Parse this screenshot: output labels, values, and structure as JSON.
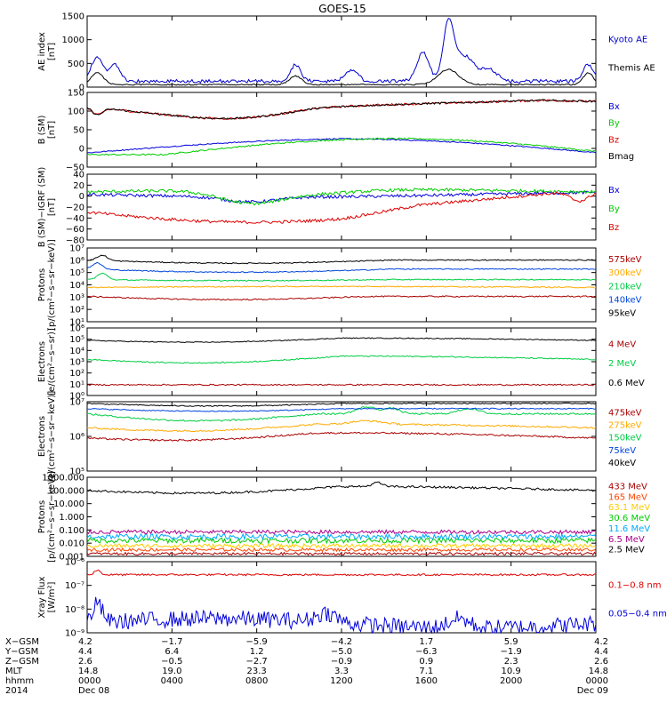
{
  "title": "GOES-15",
  "chart_data": {
    "type": "line",
    "x_ticks": [
      "0000",
      "0400",
      "0800",
      "1200",
      "1600",
      "2000",
      "0000"
    ],
    "panels": [
      {
        "ylabel": "AE index\n[nT]",
        "scale": "linear",
        "ylim": [
          0,
          1500
        ],
        "yticks": [
          "0",
          "500",
          "1000",
          "1500"
        ],
        "series": [
          {
            "name": "Kyoto AE",
            "color": "#0000cc",
            "kind": "ae_kyoto"
          },
          {
            "name": "Themis AE",
            "color": "#000000",
            "kind": "ae_themis"
          }
        ]
      },
      {
        "ylabel": "B (SM)\n[nT]",
        "scale": "linear",
        "ylim": [
          -60,
          150
        ],
        "yticks": [
          "−50",
          "0",
          "50",
          "100",
          "150"
        ],
        "series": [
          {
            "name": "Bx",
            "color": "#0000dd",
            "kind": "bsm_bx"
          },
          {
            "name": "By",
            "color": "#00cc00",
            "kind": "bsm_by"
          },
          {
            "name": "Bz",
            "color": "#dd0000",
            "kind": "bsm_bz"
          },
          {
            "name": "Bmag",
            "color": "#000000",
            "kind": "bsm_bmag"
          }
        ]
      },
      {
        "ylabel": "B (SM)−IGRF (SM)\n[nT]",
        "scale": "linear",
        "ylim": [
          -90,
          40
        ],
        "yticks": [
          "−80",
          "−60",
          "−40",
          "−20",
          "0",
          "20",
          "40"
        ],
        "series": [
          {
            "name": "Bx",
            "color": "#0000dd",
            "kind": "digrf_bx"
          },
          {
            "name": "By",
            "color": "#00cc00",
            "kind": "digrf_by"
          },
          {
            "name": "Bz",
            "color": "#dd0000",
            "kind": "digrf_bz"
          }
        ]
      },
      {
        "ylabel": "Protons\n[p/(cm²−s−sr−keV)]",
        "scale": "log",
        "ylim": [
          1,
          10000000
        ],
        "yticks": [
          "10¹",
          "10²",
          "10³",
          "10⁴",
          "10⁵",
          "10⁶",
          "10⁷"
        ],
        "series": [
          {
            "name": "575keV",
            "color": "#aa0000",
            "kind": "p575"
          },
          {
            "name": "300keV",
            "color": "#ffaa00",
            "kind": "p300"
          },
          {
            "name": "210keV",
            "color": "#00cc44",
            "kind": "p210"
          },
          {
            "name": "140keV",
            "color": "#0044dd",
            "kind": "p140"
          },
          {
            "name": "95keV",
            "color": "#000000",
            "kind": "p95"
          }
        ]
      },
      {
        "ylabel": "Electrons\n[e/(cm²−s−sr)]",
        "scale": "log",
        "ylim": [
          1,
          1000000
        ],
        "yticks": [
          "10⁰",
          "10¹",
          "10²",
          "10³",
          "10⁴",
          "10⁵",
          "10⁶"
        ],
        "series": [
          {
            "name": "4 MeV",
            "color": "#aa0000",
            "kind": "e4mev"
          },
          {
            "name": "2 MeV",
            "color": "#00cc44",
            "kind": "e2mev"
          },
          {
            "name": "0.6 MeV",
            "color": "#000000",
            "kind": "e06mev"
          }
        ]
      },
      {
        "ylabel": "Electrons\n[e/(cm²−s−sr−keV)]",
        "scale": "log",
        "ylim": [
          1000,
          10000000
        ],
        "yticks": [
          "10⁵",
          "10⁶",
          "10⁷"
        ],
        "series": [
          {
            "name": "475keV",
            "color": "#aa0000",
            "kind": "m475"
          },
          {
            "name": "275keV",
            "color": "#ffaa00",
            "kind": "m275"
          },
          {
            "name": "150keV",
            "color": "#00cc44",
            "kind": "m150"
          },
          {
            "name": "75keV",
            "color": "#0044dd",
            "kind": "m75"
          },
          {
            "name": "40keV",
            "color": "#000000",
            "kind": "m40"
          }
        ]
      },
      {
        "ylabel": "Protons\n[p/(cm²−s−sr−keV)]",
        "scale": "log",
        "ylim": [
          0.001,
          1000
        ],
        "yticks": [
          "0.001",
          "0.010",
          "0.100",
          "1.000",
          "10.000",
          "100.000",
          "1000.000"
        ],
        "series": [
          {
            "name": "433 MeV",
            "color": "#aa0000",
            "kind": "hp433"
          },
          {
            "name": "165 MeV",
            "color": "#ff4400",
            "kind": "hp165"
          },
          {
            "name": "63.1 MeV",
            "color": "#ffcc00",
            "kind": "hp63"
          },
          {
            "name": "30.6 MeV",
            "color": "#00cc00",
            "kind": "hp30"
          },
          {
            "name": "11.6 MeV",
            "color": "#00aaff",
            "kind": "hp11"
          },
          {
            "name": "6.5 MeV",
            "color": "#aa0088",
            "kind": "hp6"
          },
          {
            "name": "2.5 MeV",
            "color": "#000000",
            "kind": "hp2"
          }
        ]
      },
      {
        "ylabel": "Xray Flux\n[W/m²]",
        "scale": "log",
        "ylim": [
          1e-09,
          1e-06
        ],
        "yticks": [
          "10⁻⁹",
          "10⁻⁸",
          "10⁻⁷",
          "10⁻⁶"
        ],
        "series": [
          {
            "name": "0.1−0.8 nm",
            "color": "#dd0000",
            "kind": "xlong"
          },
          {
            "name": "0.05−0.4 nm",
            "color": "#0000dd",
            "kind": "xshort"
          }
        ]
      }
    ]
  },
  "ephemeris": {
    "rows": [
      {
        "label": "X−GSM",
        "values": [
          "4.2",
          "−1.7",
          "−5.9",
          "−4.2",
          "1.7",
          "5.9",
          "4.2"
        ]
      },
      {
        "label": "Y−GSM",
        "values": [
          "4.4",
          "6.4",
          "1.2",
          "−5.0",
          "−6.3",
          "−1.9",
          "4.4"
        ]
      },
      {
        "label": "Z−GSM",
        "values": [
          "2.6",
          "−0.5",
          "−2.7",
          "−0.9",
          "0.9",
          "2.3",
          "2.6"
        ]
      },
      {
        "label": "MLT",
        "values": [
          "14.8",
          "19.0",
          "23.3",
          "3.3",
          "7.1",
          "10.9",
          "14.8"
        ]
      },
      {
        "label": "hhmm",
        "values": [
          "0000",
          "0400",
          "0800",
          "1200",
          "1600",
          "2000",
          "0000"
        ]
      },
      {
        "label": "2014",
        "values": [
          "Dec 08",
          "",
          "",
          "",
          "",
          "",
          "Dec 09"
        ]
      }
    ]
  }
}
